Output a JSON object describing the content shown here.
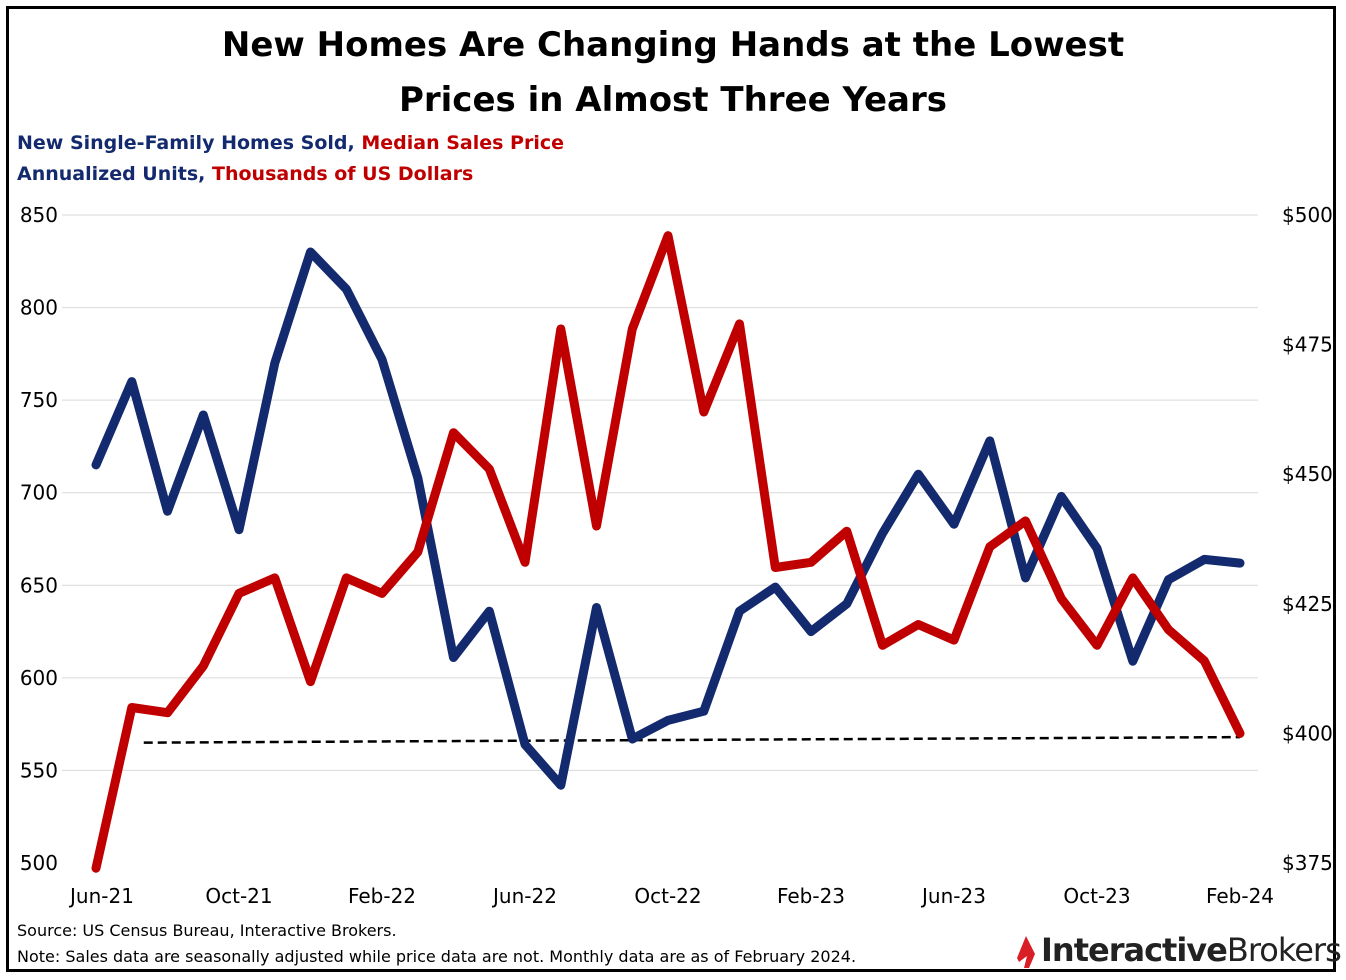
{
  "title_line1": "New Homes Are Changing Hands at the Lowest",
  "title_line2": "Prices in Almost Three Years",
  "subtitle": {
    "series1_name": "New Single-Family Homes Sold",
    "sep1": ",",
    "series2_name": "Median Sales Price",
    "series1_unit": "Annualized Units",
    "sep2": ",",
    "series2_unit": "Thousands of US Dollars"
  },
  "footer": {
    "source": "Source:  US Census Bureau, Interactive Brokers.",
    "note": "Note: Sales data are seasonally adjusted while price data are not. Monthly data are as of February 2024."
  },
  "logo": {
    "bold": "Interactive",
    "light": "Brokers"
  },
  "colors": {
    "homes_sold": "#132a6e",
    "median_price": "#c00000",
    "reference": "#000000"
  },
  "chart_data": {
    "type": "line",
    "x": [
      "Jun-21",
      "Jul-21",
      "Aug-21",
      "Sep-21",
      "Oct-21",
      "Nov-21",
      "Dec-21",
      "Jan-22",
      "Feb-22",
      "Mar-22",
      "Apr-22",
      "May-22",
      "Jun-22",
      "Jul-22",
      "Aug-22",
      "Sep-22",
      "Oct-22",
      "Nov-22",
      "Dec-22",
      "Jan-23",
      "Feb-23",
      "Mar-23",
      "Apr-23",
      "May-23",
      "Jun-23",
      "Jul-23",
      "Aug-23",
      "Sep-23",
      "Oct-23",
      "Nov-23",
      "Dec-23",
      "Jan-24",
      "Feb-24"
    ],
    "x_tick_labels": [
      "Jun-21",
      "Oct-21",
      "Feb-22",
      "Jun-22",
      "Oct-22",
      "Feb-23",
      "Jun-23",
      "Oct-23",
      "Feb-24"
    ],
    "series": [
      {
        "name": "New Single-Family Homes Sold",
        "axis": "left",
        "values": [
          715,
          760,
          690,
          742,
          680,
          770,
          830,
          810,
          772,
          708,
          611,
          636,
          564,
          542,
          638,
          567,
          577,
          582,
          636,
          649,
          625,
          640,
          678,
          710,
          683,
          728,
          654,
          698,
          670,
          609,
          653,
          664,
          662
        ]
      },
      {
        "name": "Median Sales Price",
        "axis": "right",
        "values": [
          374,
          405,
          404,
          413,
          427,
          430,
          410,
          430,
          427,
          435,
          458,
          451,
          433,
          478,
          440,
          478,
          496,
          462,
          479,
          432,
          433,
          439,
          417,
          421,
          418,
          436,
          441,
          426,
          417,
          430,
          420,
          414,
          400
        ]
      }
    ],
    "reference_line": {
      "values_left_axis": [
        565,
        568
      ]
    },
    "y_left": {
      "ylim": [
        500,
        850
      ],
      "ticks": [
        "500",
        "550",
        "600",
        "650",
        "700",
        "750",
        "800",
        "850"
      ]
    },
    "y_right": {
      "ylim": [
        375,
        500
      ],
      "ticks": [
        "$375",
        "$400",
        "$425",
        "$450",
        "$475",
        "$500"
      ]
    },
    "grid": true
  }
}
